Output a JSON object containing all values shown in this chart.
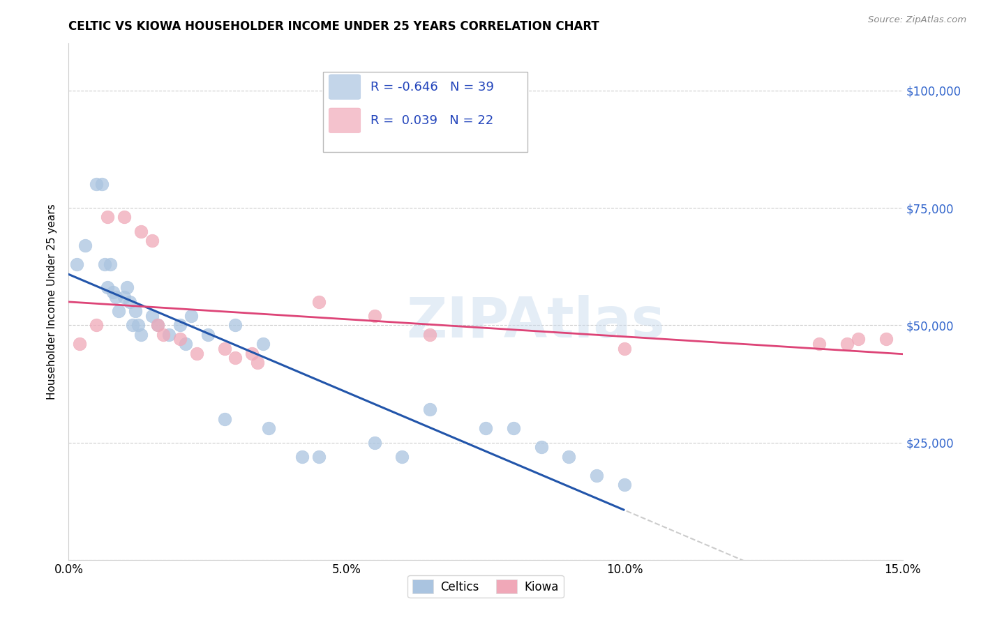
{
  "title": "CELTIC VS KIOWA HOUSEHOLDER INCOME UNDER 25 YEARS CORRELATION CHART",
  "source": "Source: ZipAtlas.com",
  "ylabel": "Householder Income Under 25 years",
  "xlim": [
    0.0,
    15.0
  ],
  "ylim": [
    0,
    110000
  ],
  "celtics_R": "-0.646",
  "celtics_N": "39",
  "kiowa_R": "0.039",
  "kiowa_N": "22",
  "celtics_color": "#aac4e0",
  "kiowa_color": "#f0a8b8",
  "celtics_line_color": "#2255aa",
  "kiowa_line_color": "#dd4477",
  "celtics_x": [
    0.15,
    0.3,
    0.5,
    0.6,
    0.65,
    0.7,
    0.75,
    0.8,
    0.85,
    0.9,
    1.0,
    1.05,
    1.1,
    1.15,
    1.2,
    1.25,
    1.3,
    1.5,
    1.6,
    1.8,
    2.0,
    2.1,
    2.2,
    2.5,
    2.8,
    3.0,
    3.5,
    3.6,
    4.2,
    4.5,
    5.5,
    6.0,
    6.5,
    7.5,
    8.0,
    8.5,
    9.0,
    9.5,
    10.0
  ],
  "celtics_y": [
    63000,
    67000,
    80000,
    80000,
    63000,
    58000,
    63000,
    57000,
    56000,
    53000,
    56000,
    58000,
    55000,
    50000,
    53000,
    50000,
    48000,
    52000,
    50000,
    48000,
    50000,
    46000,
    52000,
    48000,
    30000,
    50000,
    46000,
    28000,
    22000,
    22000,
    25000,
    22000,
    32000,
    28000,
    28000,
    24000,
    22000,
    18000,
    16000
  ],
  "kiowa_x": [
    0.2,
    0.5,
    0.7,
    1.0,
    1.3,
    1.5,
    1.6,
    1.7,
    2.0,
    2.3,
    2.8,
    3.0,
    3.3,
    3.4,
    4.5,
    5.5,
    6.5,
    10.0,
    13.5,
    14.0,
    14.2,
    14.7
  ],
  "kiowa_y": [
    46000,
    50000,
    73000,
    73000,
    70000,
    68000,
    50000,
    48000,
    47000,
    44000,
    45000,
    43000,
    44000,
    42000,
    55000,
    52000,
    48000,
    45000,
    46000,
    46000,
    47000,
    47000
  ],
  "watermark_text": "ZIPAtlas",
  "bg_color": "#ffffff",
  "grid_color": "#cccccc"
}
